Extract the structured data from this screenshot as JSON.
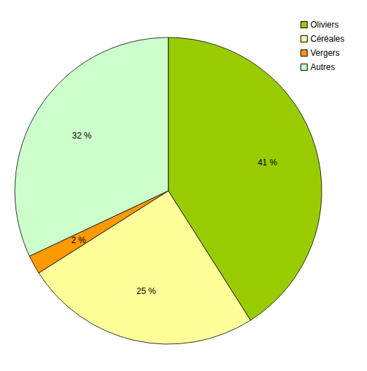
{
  "chart_data": {
    "type": "pie",
    "categories": [
      "Oliviers",
      "Céréales",
      "Vergers",
      "Autres"
    ],
    "values": [
      41,
      25,
      2,
      32
    ],
    "value_labels": [
      "41 %",
      "25 %",
      "2 %",
      "32 %"
    ],
    "colors": [
      "#99cc00",
      "#ffff99",
      "#ff9900",
      "#ccffcc"
    ],
    "data_labels": true,
    "legend": "top-right"
  }
}
